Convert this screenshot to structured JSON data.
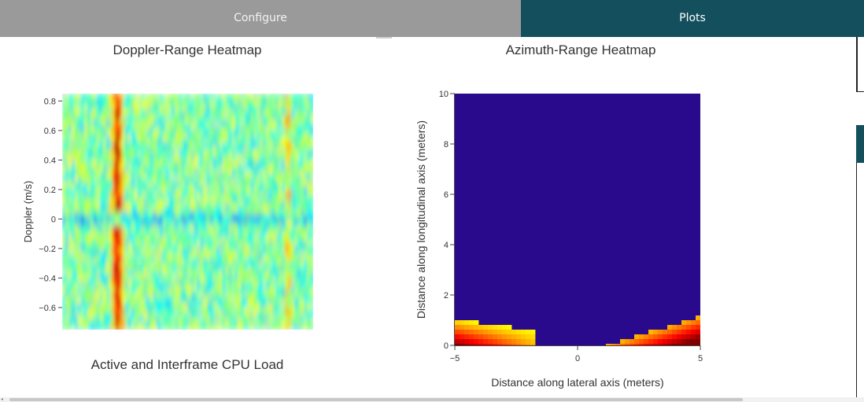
{
  "tabs": [
    {
      "label": "Configure",
      "active": false
    },
    {
      "label": "Plots",
      "active": true
    }
  ],
  "colors": {
    "tab_inactive": "#9a9a9a",
    "tab_active": "#134f5c",
    "azimuth_background": "#2a0a8c"
  },
  "chart_data": [
    {
      "type": "heatmap",
      "title": "Doppler-Range Heatmap",
      "xlabel": "",
      "ylabel": "Doppler (m/s)",
      "ylim": [
        -0.75,
        0.85
      ],
      "y_ticks": [
        0.8,
        0.6,
        0.4,
        0.2,
        0,
        -0.2,
        -0.4,
        -0.6
      ],
      "y_tick_labels": [
        "0.8",
        "0.6",
        "0.4",
        "0.2",
        "0",
        "−0.2",
        "−0.4",
        "−0.6"
      ],
      "colorscale": "jet",
      "description_values": {
        "hot_column_fraction": 0.22,
        "zero_doppler_band": true
      }
    },
    {
      "type": "heatmap",
      "title": "Azimuth-Range Heatmap",
      "xlabel": "Distance along lateral axis (meters)",
      "ylabel": "Distance along longitudinal axis (meters)",
      "xlim": [
        -5,
        5
      ],
      "ylim": [
        0,
        10
      ],
      "x_ticks": [
        -5,
        0,
        5
      ],
      "x_tick_labels": [
        "−5",
        "0",
        "5"
      ],
      "y_ticks": [
        0,
        2,
        4,
        6,
        8,
        10
      ],
      "y_tick_labels": [
        "0",
        "2",
        "4",
        "6",
        "8",
        "10"
      ],
      "colorscale": "jet"
    },
    {
      "type": "bar",
      "title": "Active and Interframe  CPU Load"
    }
  ]
}
